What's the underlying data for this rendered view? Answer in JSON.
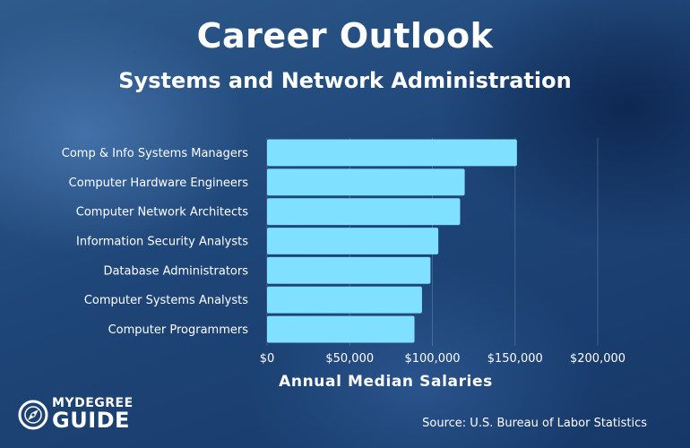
{
  "header": {
    "title": "Career Outlook",
    "subtitle": "Systems and Network Administration"
  },
  "colors": {
    "bar": "#7fe0ff",
    "background": "#1f4678",
    "text": "#ffffff"
  },
  "chart_data": {
    "type": "bar",
    "orientation": "horizontal",
    "categories": [
      "Comp & Info Systems Managers",
      "Computer Hardware Engineers",
      "Computer Network Architects",
      "Information Security Analysts",
      "Database Administrators",
      "Computer Systems Analysts",
      "Computer Programmers"
    ],
    "values": [
      151150,
      119560,
      116780,
      103590,
      98860,
      93730,
      89190
    ],
    "xlabel": "Annual Median Salaries",
    "xlim": [
      0,
      200000
    ],
    "xticks": [
      0,
      50000,
      100000,
      150000,
      200000
    ],
    "xtick_labels": [
      "$0",
      "$50,000",
      "$100,000",
      "$150,000",
      "$200,000"
    ],
    "grid": true
  },
  "footer": {
    "source": "Source: U.S. Bureau of Labor Statistics"
  },
  "logo": {
    "line1": "MYDEGREE",
    "line2": "GUIDE",
    "icon": "compass-icon"
  }
}
